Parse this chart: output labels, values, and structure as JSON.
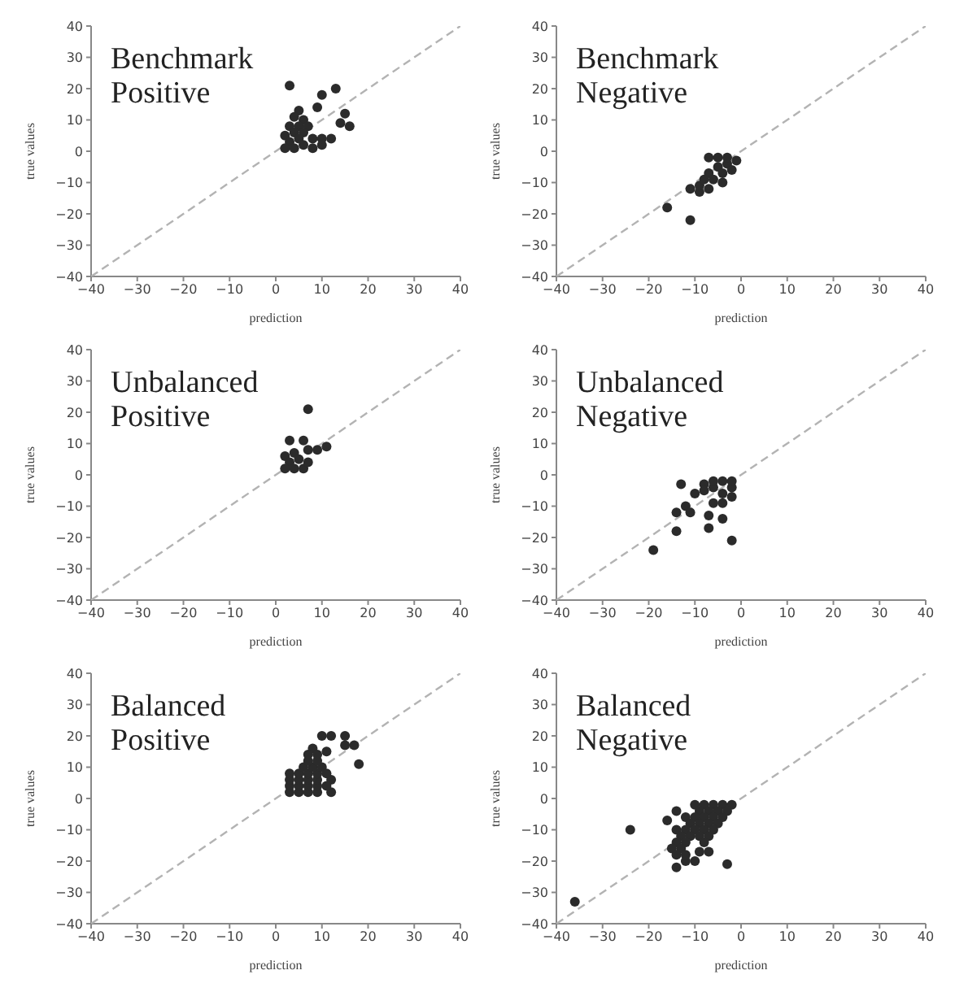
{
  "chart_data": [
    {
      "type": "scatter",
      "title": "Benchmark Positive",
      "xlabel": "prediction",
      "ylabel": "true values",
      "xlim": [
        -40,
        40
      ],
      "ylim": [
        -40,
        40
      ],
      "xticks": [
        -40,
        -30,
        -20,
        -10,
        0,
        10,
        20,
        30,
        40
      ],
      "yticks": [
        -40,
        -30,
        -20,
        -10,
        0,
        10,
        20,
        30,
        40
      ],
      "series": [
        {
          "type": "line",
          "color": "#b3b3b3",
          "line_style": "dashed",
          "marker": "none",
          "x": [
            -40,
            40
          ],
          "values": [
            -40,
            40
          ]
        },
        {
          "color": "#2b2b2b",
          "marker": "circle",
          "x": [
            3,
            10,
            13,
            9,
            15,
            14,
            16,
            5,
            4,
            6,
            3,
            5,
            7,
            2,
            4,
            6,
            3,
            5,
            8,
            10,
            12,
            10,
            2,
            4,
            6,
            8
          ],
          "values": [
            21,
            18,
            20,
            14,
            12,
            9,
            8,
            13,
            11,
            10,
            8,
            8,
            8,
            5,
            6,
            6,
            3,
            4,
            4,
            4,
            4,
            2,
            1,
            1,
            2,
            1
          ]
        }
      ]
    },
    {
      "type": "scatter",
      "title": "Benchmark Negative",
      "xlabel": "prediction",
      "ylabel": "true values",
      "xlim": [
        -40,
        40
      ],
      "ylim": [
        -40,
        40
      ],
      "xticks": [
        -40,
        -30,
        -20,
        -10,
        0,
        10,
        20,
        30,
        40
      ],
      "yticks": [
        -40,
        -30,
        -20,
        -10,
        0,
        10,
        20,
        30,
        40
      ],
      "series": [
        {
          "type": "line",
          "color": "#b3b3b3",
          "line_style": "dashed",
          "marker": "none",
          "x": [
            -40,
            40
          ],
          "values": [
            -40,
            40
          ]
        },
        {
          "color": "#2b2b2b",
          "marker": "circle",
          "x": [
            -16,
            -11,
            -11,
            -9,
            -7,
            -9,
            -7,
            -5,
            -6,
            -4,
            -4,
            -3,
            -5,
            -3,
            -1,
            -2,
            -7,
            -8
          ],
          "values": [
            -18,
            -22,
            -12,
            -13,
            -12,
            -11,
            -7,
            -5,
            -9,
            -10,
            -7,
            -4,
            -2,
            -2,
            -3,
            -6,
            -2,
            -9
          ]
        }
      ]
    },
    {
      "type": "scatter",
      "title": "Unbalanced Positive",
      "xlabel": "prediction",
      "ylabel": "true values",
      "xlim": [
        -40,
        40
      ],
      "ylim": [
        -40,
        40
      ],
      "xticks": [
        -40,
        -30,
        -20,
        -10,
        0,
        10,
        20,
        30,
        40
      ],
      "yticks": [
        -40,
        -30,
        -20,
        -10,
        0,
        10,
        20,
        30,
        40
      ],
      "series": [
        {
          "type": "line",
          "color": "#b3b3b3",
          "line_style": "dashed",
          "marker": "none",
          "x": [
            -40,
            40
          ],
          "values": [
            -40,
            40
          ]
        },
        {
          "color": "#2b2b2b",
          "marker": "circle",
          "x": [
            7,
            3,
            6,
            7,
            9,
            11,
            4,
            2,
            3,
            5,
            2,
            4,
            6,
            7
          ],
          "values": [
            21,
            11,
            11,
            8,
            8,
            9,
            7,
            6,
            4,
            5,
            2,
            2,
            2,
            4
          ]
        }
      ]
    },
    {
      "type": "scatter",
      "title": "Unbalanced Negative",
      "xlabel": "prediction",
      "ylabel": "true values",
      "xlim": [
        -40,
        40
      ],
      "ylim": [
        -40,
        40
      ],
      "xticks": [
        -40,
        -30,
        -20,
        -10,
        0,
        10,
        20,
        30,
        40
      ],
      "yticks": [
        -40,
        -30,
        -20,
        -10,
        0,
        10,
        20,
        30,
        40
      ],
      "series": [
        {
          "type": "line",
          "color": "#b3b3b3",
          "line_style": "dashed",
          "marker": "none",
          "x": [
            -40,
            40
          ],
          "values": [
            -40,
            40
          ]
        },
        {
          "color": "#2b2b2b",
          "marker": "circle",
          "x": [
            -19,
            -14,
            -13,
            -14,
            -12,
            -11,
            -10,
            -7,
            -7,
            -4,
            -2,
            -8,
            -8,
            -6,
            -6,
            -4,
            -4,
            -2,
            -2,
            -6,
            -4,
            -2
          ],
          "values": [
            -24,
            -18,
            -3,
            -12,
            -10,
            -12,
            -6,
            -13,
            -17,
            -14,
            -21,
            -3,
            -5,
            -9,
            -4,
            -2,
            -6,
            -4,
            -7,
            -2,
            -9,
            -2
          ]
        }
      ]
    },
    {
      "type": "scatter",
      "title": "Balanced Positive",
      "xlabel": "prediction",
      "ylabel": "true values",
      "xlim": [
        -40,
        40
      ],
      "ylim": [
        -40,
        40
      ],
      "xticks": [
        -40,
        -30,
        -20,
        -10,
        0,
        10,
        20,
        30,
        40
      ],
      "yticks": [
        -40,
        -30,
        -20,
        -10,
        0,
        10,
        20,
        30,
        40
      ],
      "series": [
        {
          "type": "line",
          "color": "#b3b3b3",
          "line_style": "dashed",
          "marker": "none",
          "x": [
            -40,
            40
          ],
          "values": [
            -40,
            40
          ]
        },
        {
          "color": "#2b2b2b",
          "marker": "circle",
          "x": [
            15,
            15,
            17,
            18,
            10,
            12,
            11,
            8,
            12,
            12,
            3,
            5,
            7,
            9,
            3,
            5,
            7,
            9,
            3,
            5,
            7,
            9,
            3,
            5,
            7,
            9,
            6,
            8,
            10,
            7,
            9,
            7,
            9,
            11,
            11
          ],
          "values": [
            20,
            17,
            17,
            11,
            20,
            20,
            15,
            16,
            2,
            6,
            2,
            2,
            2,
            2,
            4,
            4,
            4,
            4,
            6,
            6,
            6,
            6,
            8,
            8,
            8,
            8,
            10,
            10,
            10,
            12,
            12,
            14,
            14,
            8,
            4
          ]
        }
      ]
    },
    {
      "type": "scatter",
      "title": "Balanced Negative",
      "xlabel": "prediction",
      "ylabel": "true values",
      "xlim": [
        -40,
        40
      ],
      "ylim": [
        -40,
        40
      ],
      "xticks": [
        -40,
        -30,
        -20,
        -10,
        0,
        10,
        20,
        30,
        40
      ],
      "yticks": [
        -40,
        -30,
        -20,
        -10,
        0,
        10,
        20,
        30,
        40
      ],
      "series": [
        {
          "type": "line",
          "color": "#b3b3b3",
          "line_style": "dashed",
          "marker": "none",
          "x": [
            -40,
            40
          ],
          "values": [
            -40,
            40
          ]
        },
        {
          "color": "#2b2b2b",
          "marker": "circle",
          "x": [
            -36,
            -24,
            -16,
            -14,
            -14,
            -3,
            -10,
            -12,
            -7,
            -9,
            -10,
            -8,
            -6,
            -4,
            -2,
            -9,
            -7,
            -5,
            -3,
            -12,
            -10,
            -8,
            -6,
            -4,
            -11,
            -9,
            -7,
            -5,
            -14,
            -12,
            -10,
            -8,
            -6,
            -13,
            -11,
            -9,
            -7,
            -14,
            -12,
            -8,
            -15,
            -13,
            -14,
            -12
          ],
          "values": [
            -33,
            -10,
            -7,
            -4,
            -22,
            -21,
            -20,
            -20,
            -17,
            -17,
            -2,
            -2,
            -2,
            -2,
            -2,
            -4,
            -4,
            -4,
            -4,
            -6,
            -6,
            -6,
            -6,
            -6,
            -8,
            -8,
            -8,
            -8,
            -10,
            -10,
            -10,
            -10,
            -10,
            -12,
            -12,
            -12,
            -12,
            -14,
            -14,
            -14,
            -16,
            -16,
            -18,
            -18
          ]
        }
      ]
    }
  ]
}
